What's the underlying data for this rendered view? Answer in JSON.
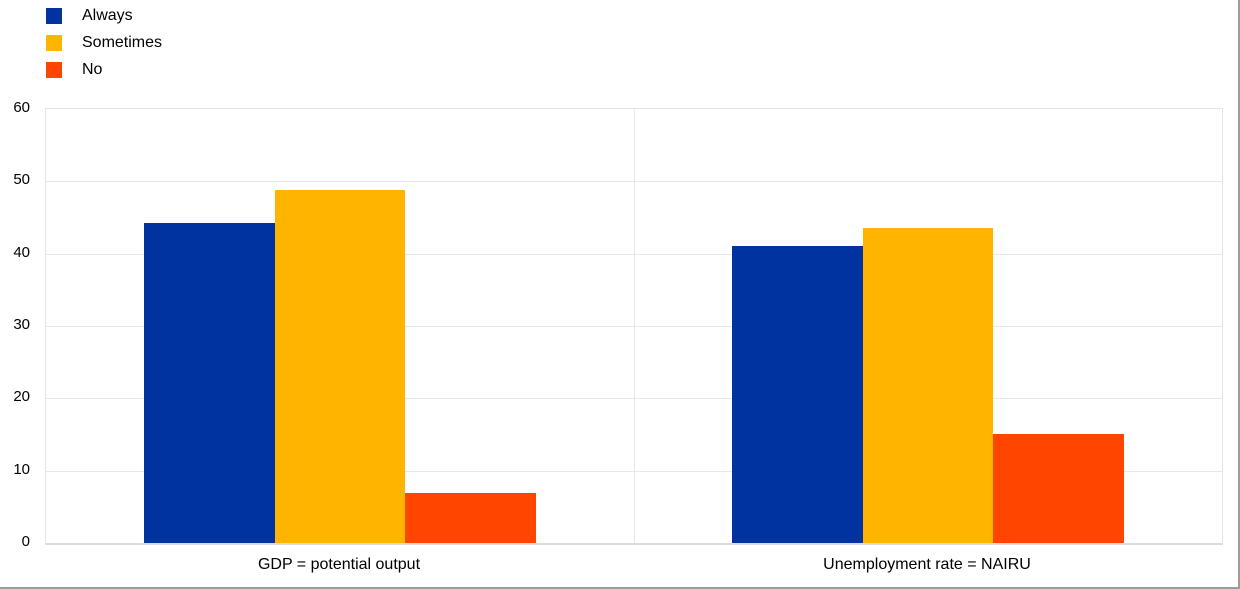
{
  "legend": {
    "items": [
      {
        "label": "Always",
        "color": "#0033A0"
      },
      {
        "label": "Sometimes",
        "color": "#FFB400"
      },
      {
        "label": "No",
        "color": "#FF4500"
      }
    ]
  },
  "chart_data": {
    "type": "bar",
    "categories": [
      "GDP = potential output",
      "Unemployment rate = NAIRU"
    ],
    "series": [
      {
        "name": "Always",
        "color": "#0033A0",
        "values": [
          44.3,
          41.0
        ]
      },
      {
        "name": "Sometimes",
        "color": "#FFB400",
        "values": [
          48.8,
          43.6
        ]
      },
      {
        "name": "No",
        "color": "#FF4500",
        "values": [
          6.9,
          15.1
        ]
      }
    ],
    "title": "",
    "xlabel": "",
    "ylabel": "",
    "ylim": [
      0,
      60
    ],
    "yticks": [
      0,
      10,
      20,
      30,
      40,
      50,
      60
    ],
    "grid": true,
    "grid_color": "#E8E8E8",
    "legend_position": "top-left"
  }
}
